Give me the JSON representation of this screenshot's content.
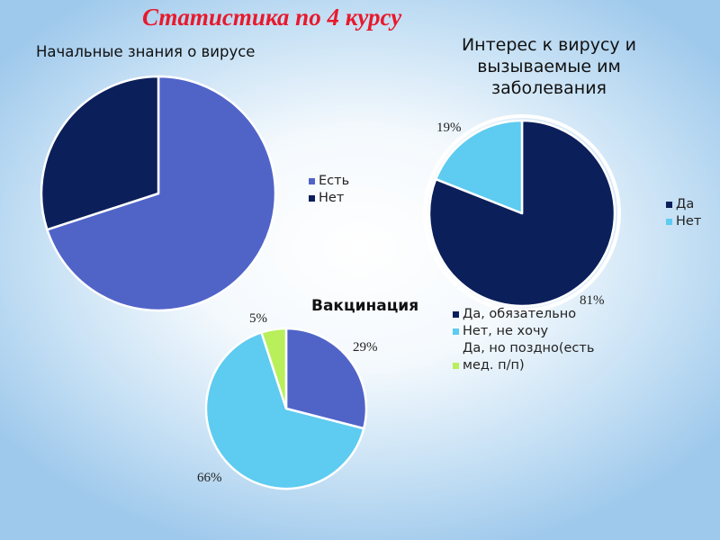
{
  "slide_title": "Статистика по 4 курсу",
  "colors": {
    "title_red": "#e8192c",
    "blue": "#5064c8",
    "navy": "#0b1f5a",
    "light_blue": "#5ecbf0",
    "light_green": "#b8ef5a",
    "separator": "#ffffff"
  },
  "chart_data": [
    {
      "type": "pie",
      "title": "Начальные знания о вирусе",
      "categories": [
        "Есть",
        "Нет"
      ],
      "values": [
        70,
        30
      ],
      "colors": [
        "#5064c8",
        "#0b1f5a"
      ],
      "data_labels": [
        "",
        ""
      ],
      "legend_position": "right"
    },
    {
      "type": "pie",
      "title": "Интерес к вирусу и вызываемые им заболевания",
      "categories": [
        "Да",
        "Нет"
      ],
      "values": [
        81,
        19
      ],
      "colors": [
        "#0b1f5a",
        "#5ecbf0"
      ],
      "data_labels": [
        "81%",
        "19%"
      ],
      "legend_position": "right"
    },
    {
      "type": "pie",
      "title": "Вакцинация",
      "categories": [
        "Да, обязательно",
        "Нет, не хочу",
        "Да, но поздно(есть мед. п/п)"
      ],
      "values": [
        29,
        66,
        5
      ],
      "colors": [
        "#5064c8",
        "#5ecbf0",
        "#b8ef5a"
      ],
      "data_labels": [
        "29%",
        "66%",
        "5%"
      ],
      "legend_position": "right"
    }
  ]
}
